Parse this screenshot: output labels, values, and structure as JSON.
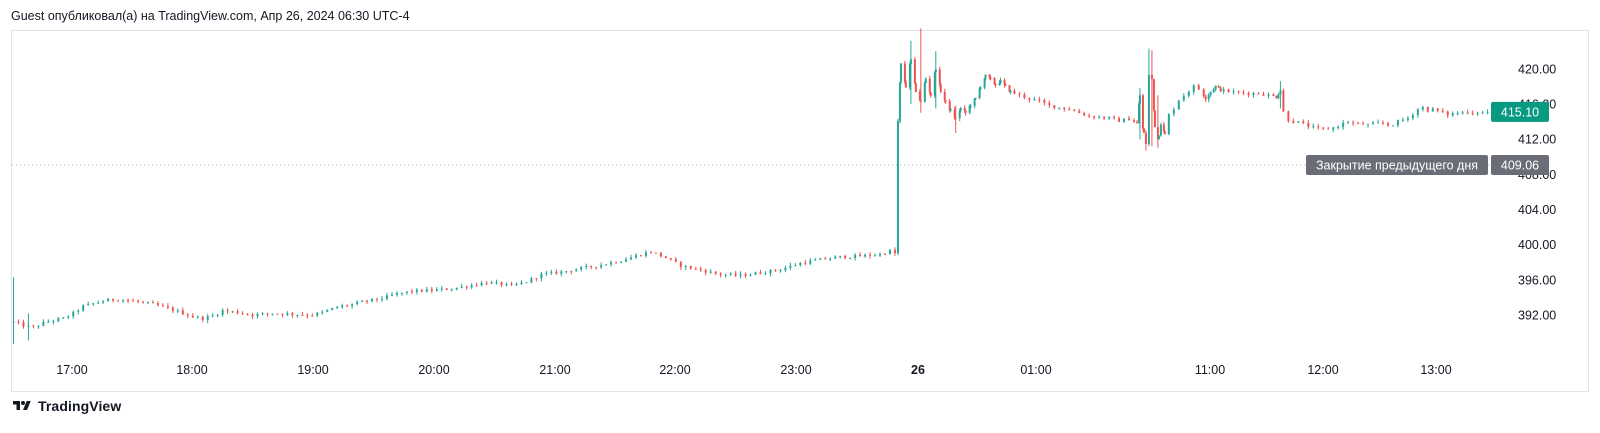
{
  "header": {
    "published_line": "Guest опубликовал(а) на TradingView.com, Апр 26, 2024 06:30 UTC-4"
  },
  "footer": {
    "brand": "TradingView",
    "logo_icon": "tradingview-logo-icon"
  },
  "colors": {
    "up": "#26a69a",
    "down": "#ef5350",
    "last_price_badge": "#089981",
    "prev_close_badge": "#6a6d78",
    "grid_border": "#e0e3eb",
    "prev_close_line": "#b2b5be"
  },
  "chart_data": {
    "type": "candlestick",
    "symbol_description": "",
    "y_axis": {
      "ticks": [
        392,
        396,
        400,
        404,
        408,
        412,
        416,
        420
      ],
      "tick_labels": [
        "392.00",
        "396.00",
        "400.00",
        "404.00",
        "408.00",
        "412.00",
        "416.00",
        "420.00"
      ],
      "range": [
        388.7,
        424.6
      ],
      "side": "right"
    },
    "x_axis": {
      "ticks": [
        {
          "label": "17:00",
          "bold": false
        },
        {
          "label": "18:00",
          "bold": false
        },
        {
          "label": "19:00",
          "bold": false
        },
        {
          "label": "20:00",
          "bold": false
        },
        {
          "label": "21:00",
          "bold": false
        },
        {
          "label": "22:00",
          "bold": false
        },
        {
          "label": "23:00",
          "bold": false
        },
        {
          "label": "26",
          "bold": true
        },
        {
          "label": "01:00",
          "bold": false
        },
        {
          "label": "11:00",
          "bold": false
        },
        {
          "label": "12:00",
          "bold": false
        },
        {
          "label": "13:00",
          "bold": false
        }
      ]
    },
    "price_path": [
      [
        0,
        391.2
      ],
      [
        2,
        390.8
      ],
      [
        4,
        390.6
      ],
      [
        6,
        391.1
      ],
      [
        8,
        391.4
      ],
      [
        10,
        391.6
      ],
      [
        12,
        392.2
      ],
      [
        14,
        393.0
      ],
      [
        16,
        393.3
      ],
      [
        18,
        393.6
      ],
      [
        21,
        393.8
      ],
      [
        25,
        393.5
      ],
      [
        28,
        393.2
      ],
      [
        30,
        392.9
      ],
      [
        33,
        392.4
      ],
      [
        36,
        391.8
      ],
      [
        38,
        391.6
      ],
      [
        40,
        391.9
      ],
      [
        42,
        392.5
      ],
      [
        45,
        392.3
      ],
      [
        48,
        392.0
      ],
      [
        52,
        392.2
      ],
      [
        56,
        392.1
      ],
      [
        60,
        392.0
      ],
      [
        62,
        392.3
      ],
      [
        65,
        392.9
      ],
      [
        68,
        393.2
      ],
      [
        71,
        393.6
      ],
      [
        74,
        393.9
      ],
      [
        77,
        394.4
      ],
      [
        80,
        394.7
      ],
      [
        84,
        394.8
      ],
      [
        88,
        395.0
      ],
      [
        92,
        395.4
      ],
      [
        95,
        395.7
      ],
      [
        98,
        395.5
      ],
      [
        100,
        395.3
      ],
      [
        103,
        395.8
      ],
      [
        106,
        396.6
      ],
      [
        110,
        396.9
      ],
      [
        114,
        397.3
      ],
      [
        118,
        397.7
      ],
      [
        122,
        398.2
      ],
      [
        126,
        398.9
      ],
      [
        128,
        399.2
      ],
      [
        131,
        398.5
      ],
      [
        134,
        397.6
      ],
      [
        138,
        397.1
      ],
      [
        142,
        396.6
      ],
      [
        146,
        396.5
      ],
      [
        150,
        396.8
      ],
      [
        154,
        397.2
      ],
      [
        158,
        397.9
      ],
      [
        162,
        398.3
      ],
      [
        166,
        398.6
      ],
      [
        170,
        398.7
      ],
      [
        174,
        398.9
      ],
      [
        176,
        399.3
      ],
      [
        177,
        399.0
      ],
      [
        177.6,
        414.0
      ],
      [
        178.2,
        420.5
      ],
      [
        179.2,
        418.0
      ],
      [
        180.2,
        421.0
      ],
      [
        181.2,
        417.5
      ],
      [
        182.2,
        416.2
      ],
      [
        183.2,
        418.9
      ],
      [
        184.2,
        417.0
      ],
      [
        185.2,
        420.1
      ],
      [
        186.2,
        417.5
      ],
      [
        187.2,
        416.2
      ],
      [
        188.2,
        415.2
      ],
      [
        189.2,
        414.3
      ],
      [
        190.2,
        415.5
      ],
      [
        191.2,
        415.0
      ],
      [
        192.2,
        415.9
      ],
      [
        193.2,
        416.6
      ],
      [
        194.2,
        418.0
      ],
      [
        195.2,
        419.2
      ],
      [
        196.2,
        418.8
      ],
      [
        197.2,
        418.2
      ],
      [
        198.2,
        418.6
      ],
      [
        199.2,
        418.0
      ],
      [
        200.2,
        417.4
      ],
      [
        202,
        417.0
      ],
      [
        204,
        416.6
      ],
      [
        206,
        416.3
      ],
      [
        208,
        415.8
      ],
      [
        210,
        415.6
      ],
      [
        212,
        415.4
      ],
      [
        214,
        415.0
      ],
      [
        216,
        414.6
      ],
      [
        218,
        414.5
      ],
      [
        220,
        414.4
      ],
      [
        222,
        414.1
      ],
      [
        224,
        414.3
      ],
      [
        225.6,
        413.8
      ],
      [
        226.2,
        417.0
      ],
      [
        226.8,
        413.2
      ],
      [
        227.4,
        411.5
      ],
      [
        228,
        419.3
      ],
      [
        228.6,
        418.8
      ],
      [
        229.2,
        413.5
      ],
      [
        229.8,
        412.0
      ],
      [
        230.4,
        413.8
      ],
      [
        231.2,
        412.5
      ],
      [
        232,
        414.8
      ],
      [
        233,
        415.5
      ],
      [
        234,
        416.5
      ],
      [
        235,
        417.0
      ],
      [
        236,
        417.5
      ],
      [
        237,
        418.0
      ],
      [
        238,
        417.7
      ],
      [
        239.4,
        416.7
      ],
      [
        240.4,
        417.4
      ],
      [
        241.4,
        418.0
      ],
      [
        242.4,
        417.6
      ],
      [
        244,
        417.4
      ],
      [
        246,
        417.3
      ],
      [
        248,
        417.2
      ],
      [
        250,
        417.2
      ],
      [
        252,
        417.0
      ],
      [
        253.6,
        416.8
      ],
      [
        254.4,
        417.6
      ],
      [
        255,
        415.1
      ],
      [
        256,
        414.2
      ],
      [
        257,
        414.0
      ],
      [
        258,
        413.9
      ],
      [
        259,
        413.7
      ],
      [
        260,
        413.5
      ],
      [
        261,
        413.3
      ],
      [
        262,
        413.2
      ],
      [
        263,
        413.1
      ],
      [
        264,
        413.2
      ],
      [
        265,
        413.3
      ],
      [
        266,
        413.5
      ],
      [
        267,
        413.8
      ],
      [
        268,
        414.0
      ],
      [
        269,
        413.8
      ],
      [
        270,
        413.7
      ],
      [
        271,
        413.7
      ],
      [
        272,
        413.6
      ],
      [
        273,
        413.7
      ],
      [
        274,
        413.8
      ],
      [
        275,
        413.8
      ],
      [
        276,
        413.6
      ],
      [
        277,
        413.7
      ],
      [
        278,
        414.0
      ],
      [
        279,
        414.2
      ],
      [
        280,
        414.4
      ],
      [
        281,
        414.9
      ],
      [
        282,
        415.4
      ],
      [
        283,
        415.6
      ],
      [
        284,
        415.3
      ],
      [
        285,
        415.4
      ],
      [
        286,
        415.2
      ],
      [
        287,
        415.0
      ],
      [
        288,
        414.8
      ],
      [
        289,
        414.9
      ],
      [
        290,
        415.0
      ],
      [
        291,
        415.0
      ],
      [
        292,
        415.1
      ],
      [
        293,
        415.0
      ],
      [
        294,
        415.1
      ],
      [
        295,
        415.0
      ],
      [
        296,
        415.1
      ],
      [
        297,
        415.1
      ]
    ],
    "spikes": [
      {
        "slot": 0,
        "high": 396.3,
        "low": 388.7
      },
      {
        "slot": 3,
        "high": 392.2,
        "low": 389.1
      },
      {
        "slot": 177.6,
        "high": 399.1,
        "low": 398.8
      },
      {
        "slot": 180.2,
        "high": 423.2,
        "low": 416.0
      },
      {
        "slot": 182.2,
        "high": 424.6,
        "low": 415.0
      },
      {
        "slot": 185.2,
        "high": 422.0,
        "low": 415.5
      },
      {
        "slot": 189.2,
        "high": 415.8,
        "low": 412.7
      },
      {
        "slot": 226.2,
        "high": 417.8,
        "low": 412.0
      },
      {
        "slot": 227.4,
        "high": 413.0,
        "low": 410.7
      },
      {
        "slot": 228,
        "high": 422.3,
        "low": 412.5
      },
      {
        "slot": 228.6,
        "high": 422.1,
        "low": 411.2
      },
      {
        "slot": 229.8,
        "high": 417.0,
        "low": 411.0
      },
      {
        "slot": 254.4,
        "high": 418.6,
        "low": 415.5
      }
    ],
    "last_price": {
      "value": 415.1,
      "label": "415.10"
    },
    "previous_close": {
      "value": 409.06,
      "label": "409.06",
      "text": "Закрытие предыдущего дня"
    }
  }
}
